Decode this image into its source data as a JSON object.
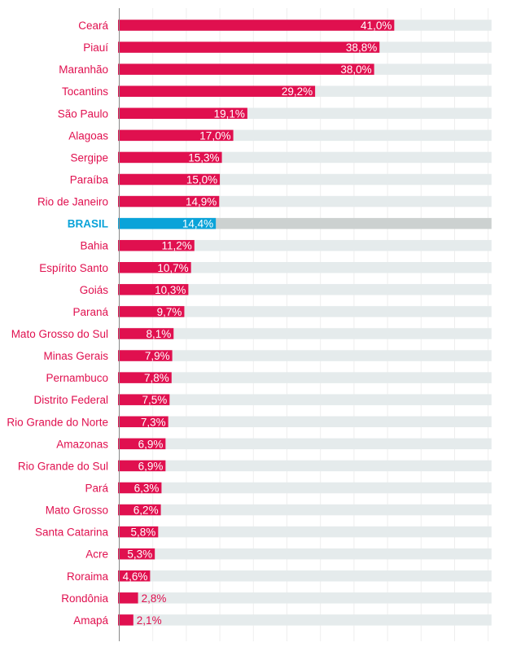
{
  "chart_data": {
    "type": "bar",
    "orientation": "horizontal",
    "title": "",
    "xlabel": "",
    "ylabel": "",
    "xlim": [
      0,
      55.5
    ],
    "grid": true,
    "grid_step": 5,
    "value_suffix": "%",
    "colors": {
      "bar": "#e0104f",
      "highlight": "#0aa3d9",
      "track": "#e5ebec",
      "highlight_track": "#ccd1d0",
      "grid": "#eeeeee",
      "axis": "#888888"
    },
    "highlight": "BRASIL",
    "categories": [
      "Ceará",
      "Piauí",
      "Maranhão",
      "Tocantins",
      "São Paulo",
      "Alagoas",
      "Sergipe",
      "Paraíba",
      "Rio de Janeiro",
      "BRASIL",
      "Bahia",
      "Espírito Santo",
      "Goiás",
      "Paraná",
      "Mato Grosso do Sul",
      "Minas Gerais",
      "Pernambuco",
      "Distrito Federal",
      "Rio Grande do Norte",
      "Amazonas",
      "Rio Grande do Sul",
      "Pará",
      "Mato Grosso",
      "Santa Catarina",
      "Acre",
      "Roraima",
      "Rondônia",
      "Amapá"
    ],
    "values": [
      41.0,
      38.8,
      38.0,
      29.2,
      19.1,
      17.0,
      15.3,
      15.0,
      14.9,
      14.4,
      11.2,
      10.7,
      10.3,
      9.7,
      8.1,
      7.9,
      7.8,
      7.5,
      7.3,
      6.9,
      6.9,
      6.3,
      6.2,
      5.8,
      5.3,
      4.6,
      2.8,
      2.1
    ],
    "value_labels": [
      "41,0%",
      "38,8%",
      "38,0%",
      "29,2%",
      "19,1%",
      "17,0%",
      "15,3%",
      "15,0%",
      "14,9%",
      "14,4%",
      "11,2%",
      "10,7%",
      "10,3%",
      "9,7%",
      "8,1%",
      "7,9%",
      "7,8%",
      "7,5%",
      "7,3%",
      "6,9%",
      "6,9%",
      "6,3%",
      "6,2%",
      "5,8%",
      "5,3%",
      "4,6%",
      "2,8%",
      "2,1%"
    ]
  }
}
